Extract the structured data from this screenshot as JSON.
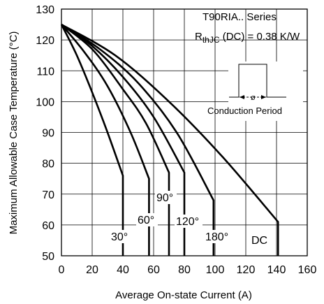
{
  "chart_data": {
    "type": "line",
    "title": "T90RIA.. Series",
    "subtitle": {
      "prefix": "R",
      "subscript": "thJC",
      "suffix": " (DC) = 0.38 K/W"
    },
    "xlabel": "Average On-state Current (A)",
    "ylabel": "Maximum Allowable Case Temperature (°C)",
    "xlim": [
      0,
      160
    ],
    "ylim": [
      50,
      130
    ],
    "xticks": [
      "0",
      "20",
      "40",
      "60",
      "80",
      "100",
      "120",
      "140",
      "160"
    ],
    "yticks": [
      "50",
      "60",
      "70",
      "80",
      "90",
      "100",
      "110",
      "120",
      "130"
    ],
    "grid": true,
    "inset_label": "Conduction Period",
    "inset_symbol": "ø",
    "series": [
      {
        "name": "30°",
        "x": [
          0,
          10,
          20,
          30,
          40,
          40
        ],
        "y": [
          125,
          115,
          103,
          90,
          76,
          50
        ]
      },
      {
        "name": "60°",
        "x": [
          0,
          15,
          30,
          45,
          57,
          57
        ],
        "y": [
          125,
          116,
          105,
          90,
          75,
          50
        ]
      },
      {
        "name": "90°",
        "x": [
          0,
          20,
          40,
          55,
          70,
          70
        ],
        "y": [
          125,
          117,
          104,
          93,
          77,
          50
        ]
      },
      {
        "name": "120°",
        "x": [
          0,
          20,
          40,
          60,
          80,
          80
        ],
        "y": [
          125,
          118,
          108,
          95,
          77,
          50
        ]
      },
      {
        "name": "180°",
        "x": [
          0,
          25,
          50,
          75,
          99,
          99
        ],
        "y": [
          125,
          117,
          106,
          90,
          68,
          50
        ]
      },
      {
        "name": "DC",
        "x": [
          0,
          35,
          70,
          105,
          141,
          141
        ],
        "y": [
          125,
          115,
          100,
          82,
          61,
          50
        ]
      }
    ]
  }
}
